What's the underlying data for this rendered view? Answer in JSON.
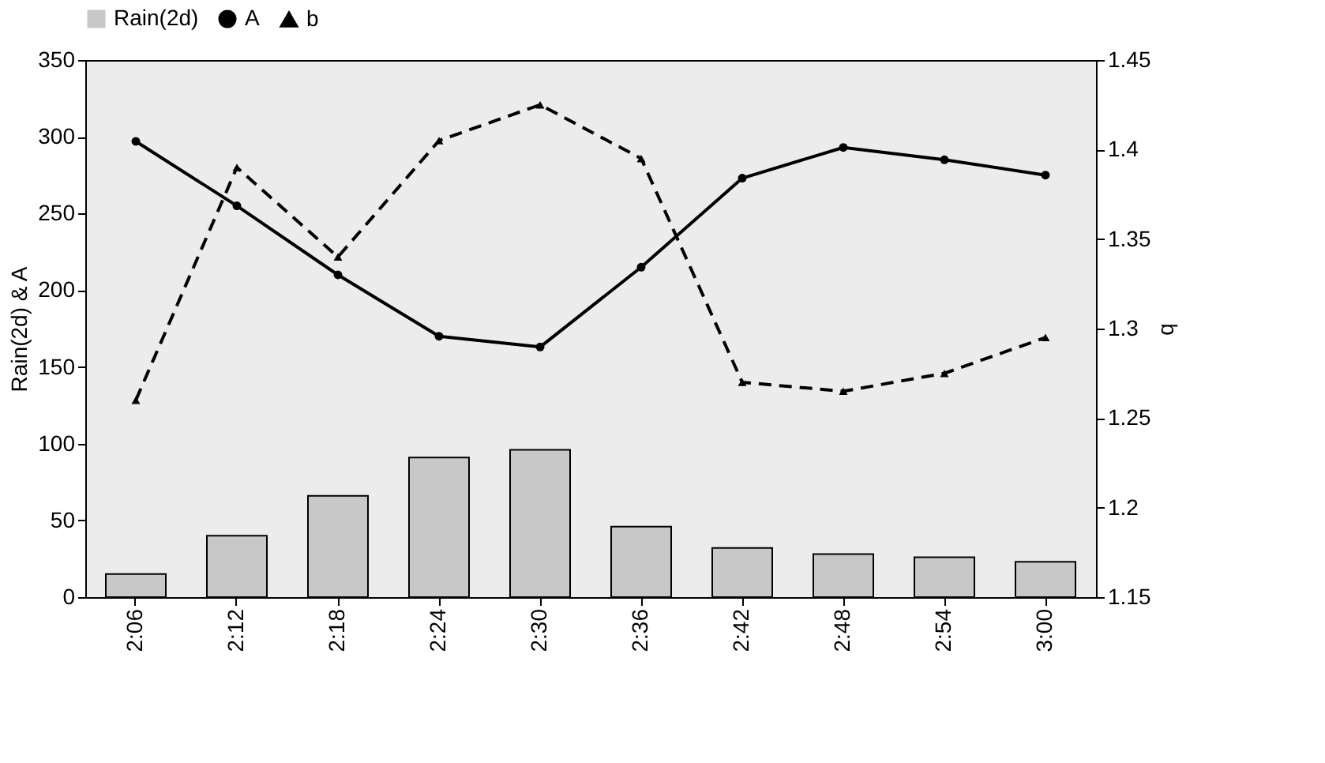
{
  "chart_data": {
    "type": "bar",
    "categories": [
      "2:06",
      "2:12",
      "2:18",
      "2:24",
      "2:30",
      "2:36",
      "2:42",
      "2:48",
      "2:54",
      "3:00"
    ],
    "ylabel": "Rain(2d)  & A",
    "y2label": "b",
    "series": [
      {
        "name": "Rain(2d)",
        "color": "#c8c8c8",
        "values": [
          15,
          40,
          66,
          91,
          96,
          46,
          32,
          28,
          26,
          23
        ]
      },
      {
        "name": "A",
        "type": "line",
        "color": "#000000",
        "marker": "circle",
        "line_style": "solid",
        "values": [
          297,
          255,
          210,
          170,
          163,
          215,
          273,
          293,
          285,
          275
        ]
      },
      {
        "name": "b",
        "type": "line",
        "axis": "y2",
        "color": "#000000",
        "marker": "triangle",
        "line_style": "dashed",
        "values": [
          1.26,
          1.39,
          1.34,
          1.405,
          1.425,
          1.395,
          1.27,
          1.265,
          1.275,
          1.295
        ]
      }
    ],
    "ylim": [
      0,
      350
    ],
    "yticks": [
      0,
      50,
      100,
      150,
      200,
      250,
      300,
      350
    ],
    "y2lim": [
      1.15,
      1.45
    ],
    "y2ticks": [
      1.15,
      1.2,
      1.25,
      1.3,
      1.35,
      1.4,
      1.45
    ],
    "legend": "top",
    "grid": false
  }
}
